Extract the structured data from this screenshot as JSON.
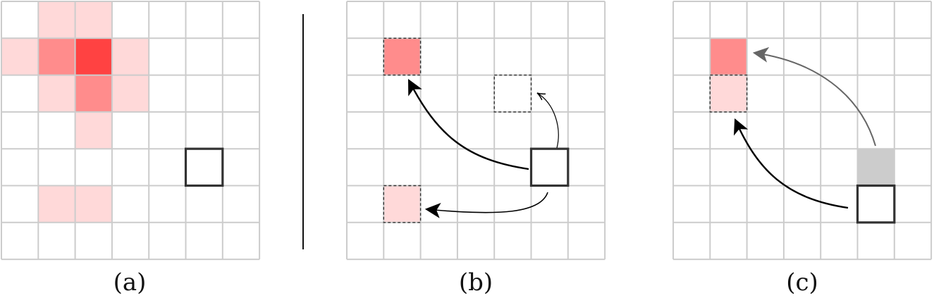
{
  "panels": [
    {
      "id": "a",
      "caption": "(a)",
      "heat_cells": [
        {
          "col": 1,
          "row": 0,
          "level": "light"
        },
        {
          "col": 2,
          "row": 0,
          "level": "light"
        },
        {
          "col": 0,
          "row": 1,
          "level": "light"
        },
        {
          "col": 1,
          "row": 1,
          "level": "medium"
        },
        {
          "col": 2,
          "row": 1,
          "level": "strong"
        },
        {
          "col": 3,
          "row": 1,
          "level": "light"
        },
        {
          "col": 1,
          "row": 2,
          "level": "light"
        },
        {
          "col": 2,
          "row": 2,
          "level": "medium"
        },
        {
          "col": 3,
          "row": 2,
          "level": "light"
        },
        {
          "col": 2,
          "row": 3,
          "level": "light"
        },
        {
          "col": 1,
          "row": 5,
          "level": "light"
        },
        {
          "col": 2,
          "row": 5,
          "level": "light"
        }
      ],
      "dashed_cells": [],
      "gray_cells": [],
      "agent_cells": [
        {
          "col": 5,
          "row": 4
        }
      ]
    },
    {
      "id": "b",
      "caption": "(b)",
      "heat_cells": [
        {
          "col": 1,
          "row": 1,
          "level": "medium"
        },
        {
          "col": 1,
          "row": 5,
          "level": "light"
        }
      ],
      "dashed_cells": [
        {
          "col": 1,
          "row": 1
        },
        {
          "col": 4,
          "row": 2
        },
        {
          "col": 1,
          "row": 5
        }
      ],
      "gray_cells": [],
      "agent_cells": [
        {
          "col": 5,
          "row": 4
        }
      ]
    },
    {
      "id": "c",
      "caption": "(c)",
      "heat_cells": [
        {
          "col": 1,
          "row": 1,
          "level": "medium"
        },
        {
          "col": 1,
          "row": 2,
          "level": "light"
        }
      ],
      "dashed_cells": [
        {
          "col": 1,
          "row": 2
        }
      ],
      "gray_cells": [
        {
          "col": 5,
          "row": 4
        }
      ],
      "agent_cells": [
        {
          "col": 5,
          "row": 5
        }
      ]
    }
  ],
  "colors": {
    "grid_line": "#cccccc",
    "heat_light": "#ffd9d9",
    "heat_medium": "#ff8c8c",
    "heat_strong": "#ff4242",
    "gray_cell": "#cccccc",
    "agent_border": "#333333",
    "arrow_black": "#000000",
    "arrow_gray": "#666666",
    "divider": "#111111"
  }
}
